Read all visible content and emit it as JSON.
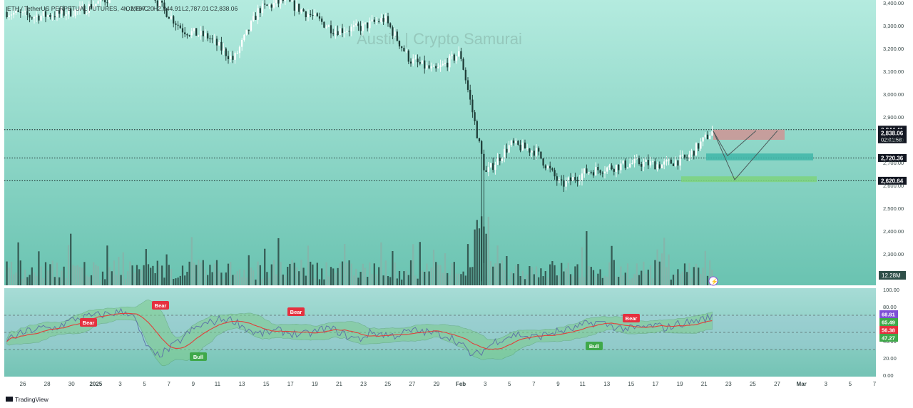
{
  "header": {
    "symbol": "ETH / TetherUS PERPETUAL FUTURES, 4h, MEXC",
    "open": "O2,787.20",
    "high": "H2,844.91",
    "low": "L2,787.01",
    "close": "C2,838.06"
  },
  "watermark": "Austin | Crypto Samurai",
  "footer": {
    "brand": "TradingView"
  },
  "colors": {
    "background_top": "#a8e4d8",
    "background_bottom": "#6cc4b2",
    "oscillator_bg": "#9fd7d2",
    "candle_up": "#ffffff",
    "candle_down": "#1d3b36",
    "volume": "#2f4f49",
    "rsi_line": "#5b6fa8",
    "rsi_ma": "#e0403a",
    "band_fill": "#7dcc8c",
    "bear_label": "#e5303f",
    "bull_label": "#3fa84a",
    "resistance_box": "#cf9494",
    "mid_box": "#3fb6a8",
    "support_box": "#7ed37e"
  },
  "chart_data": [
    {
      "type": "candlestick",
      "title": "ETH / TetherUS PERPETUAL FUTURES, 4h, MEXC",
      "ylim": [
        2200,
        3400
      ],
      "y_ticks": [
        "3,400.00",
        "3,300.00",
        "3,200.00",
        "3,100.00",
        "3,000.00",
        "2,900.00",
        "2,800.00",
        "2,700.00",
        "2,600.00",
        "2,500.00",
        "2,400.00",
        "2,300.00"
      ],
      "x_ticks": [
        "26",
        "28",
        "30",
        "2025",
        "3",
        "5",
        "7",
        "9",
        "11",
        "13",
        "15",
        "17",
        "19",
        "21",
        "23",
        "25",
        "27",
        "29",
        "Feb",
        "3",
        "5",
        "7",
        "9",
        "11",
        "13",
        "15",
        "17",
        "19",
        "21",
        "23",
        "25",
        "27",
        "Mar",
        "3",
        "5",
        "7"
      ],
      "price_levels": [
        {
          "label": "2,844.41",
          "value": 2844.41,
          "style": "dotted"
        },
        {
          "label": "2,838.06",
          "value": 2838.06,
          "sub": "02:01:58",
          "current": true
        },
        {
          "label": "2,720.36",
          "value": 2720.36,
          "style": "dotted"
        },
        {
          "label": "2,620.64",
          "value": 2620.64,
          "style": "dotted"
        }
      ],
      "volume_label": "12.28M",
      "price_path_approx": {
        "dates": [
          "Dec 26",
          "Dec 28",
          "Dec 30",
          "Jan 1",
          "Jan 3",
          "Jan 5",
          "Jan 7",
          "Jan 9",
          "Jan 11",
          "Jan 13",
          "Jan 15",
          "Jan 17",
          "Jan 19",
          "Jan 21",
          "Jan 23",
          "Jan 25",
          "Jan 27",
          "Jan 29",
          "Feb 1",
          "Feb 3",
          "Feb 5",
          "Feb 7",
          "Feb 9",
          "Feb 11",
          "Feb 13",
          "Feb 15",
          "Feb 17",
          "Feb 19",
          "Feb 21"
        ],
        "close": [
          3360,
          3340,
          3350,
          3370,
          3420,
          3600,
          3400,
          3280,
          3250,
          3150,
          3370,
          3410,
          3350,
          3280,
          3290,
          3330,
          3150,
          3100,
          3180,
          2650,
          2780,
          2750,
          2600,
          2660,
          2680,
          2700,
          2690,
          2720,
          2838
        ]
      },
      "forecast_levels": {
        "resistance_top": 2844.41,
        "resistance_bottom": 2800,
        "mid_top": 2740,
        "mid_bottom": 2710,
        "support_top": 2640,
        "support_bottom": 2615
      }
    },
    {
      "type": "line",
      "title": "RSI",
      "ylim": [
        0,
        100
      ],
      "y_ticks": [
        "100.00",
        "80.00",
        "60.00",
        "40.00",
        "20.00",
        "0.00"
      ],
      "series": [],
      "values_shown": [
        {
          "label": "68.81",
          "color": "#7e4fd6"
        },
        {
          "label": "65.49",
          "color": "#3fa84a"
        },
        {
          "label": "56.38",
          "color": "#e5303f"
        },
        {
          "label": "47.27",
          "color": "#3fa84a"
        }
      ],
      "signals": [
        {
          "label": "Bear",
          "type": "bear"
        },
        {
          "label": "Bear",
          "type": "bear"
        },
        {
          "label": "Bear",
          "type": "bear"
        },
        {
          "label": "Bear",
          "type": "bear"
        },
        {
          "label": "Bull",
          "type": "bull"
        },
        {
          "label": "Bull",
          "type": "bull"
        }
      ],
      "rsi_path_approx": [
        42,
        47,
        52,
        55,
        54,
        60,
        66,
        68,
        70,
        72,
        74,
        73,
        40,
        22,
        28,
        38,
        50,
        58,
        62,
        66,
        64,
        55,
        48,
        50,
        52,
        49,
        47,
        50,
        55,
        52,
        45,
        42,
        50,
        48,
        46,
        50,
        52,
        50,
        48,
        45,
        35,
        22,
        30,
        40,
        45,
        48,
        44,
        46,
        50,
        52,
        55,
        60,
        62,
        58,
        55,
        54,
        56,
        58,
        55,
        60,
        62,
        65,
        68
      ]
    }
  ]
}
